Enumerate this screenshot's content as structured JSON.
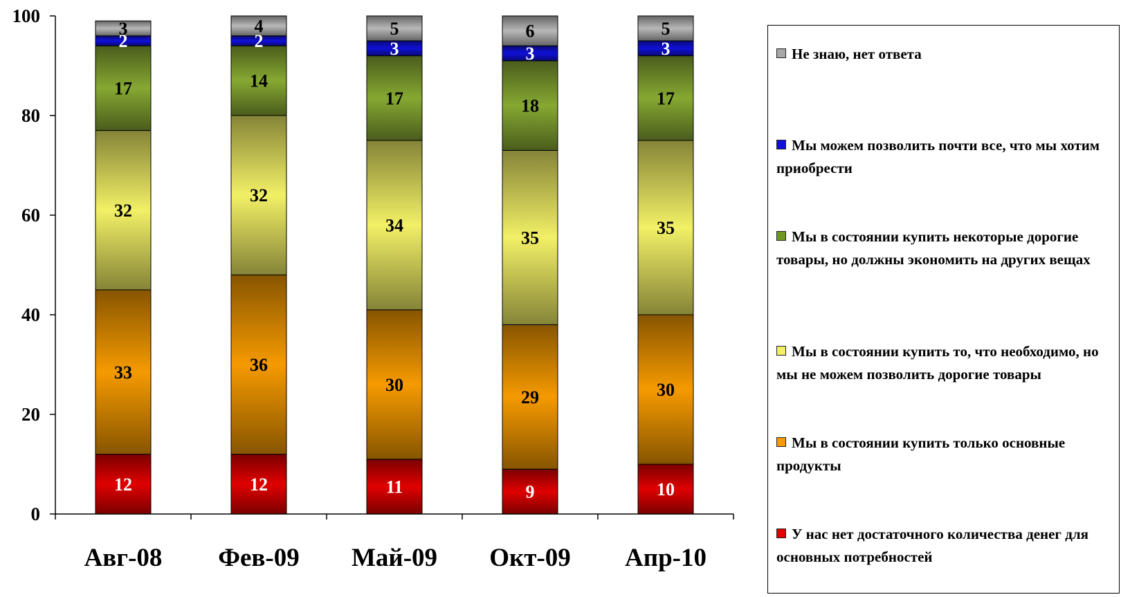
{
  "chart_data": {
    "type": "bar",
    "stacked": true,
    "title": "",
    "xlabel": "",
    "ylabel": "",
    "ylim": [
      0,
      100
    ],
    "yticks": [
      0,
      20,
      40,
      60,
      80,
      100
    ],
    "categories": [
      "Авг-08",
      "Фев-09",
      "Май-09",
      "Окт-09",
      "Апр-10"
    ],
    "series": [
      {
        "name": "У нас нет достаточного количества денег для основных потребностей",
        "values": [
          12,
          12,
          11,
          9,
          10
        ],
        "color": "#e00000",
        "label_color": "#ffffff"
      },
      {
        "name": "Мы в состоянии купить только основные продукты",
        "values": [
          33,
          36,
          30,
          29,
          30
        ],
        "color": "#f59a00",
        "label_color": "#000000"
      },
      {
        "name": "Мы в состоянии купить то, что необходимо, но мы не можем позволить дорогие товары",
        "values": [
          32,
          32,
          34,
          35,
          35
        ],
        "color": "#f2f066",
        "label_color": "#000000"
      },
      {
        "name": "Мы в состоянии купить некоторые дорогие товары, но должны экономить на других вещах",
        "values": [
          17,
          14,
          17,
          18,
          17
        ],
        "color": "#86a832",
        "label_color": "#000000"
      },
      {
        "name": "Мы можем позволить почти все, что мы хотим приобрести",
        "values": [
          2,
          2,
          3,
          3,
          3
        ],
        "color": "#1010d8",
        "label_color": "#ffffff"
      },
      {
        "name": "Не знаю, нет ответа",
        "values": [
          3,
          4,
          5,
          6,
          5
        ],
        "color": "#b8b8b8",
        "label_color": "#000000"
      }
    ],
    "legend": {
      "placement": "right",
      "items": [
        {
          "label": "Не знаю, нет ответа",
          "color": "#a8a8a8"
        },
        {
          "label": "Мы можем позволить почти все, что мы хотим приобрести",
          "color": "#1010d8"
        },
        {
          "label": "Мы в состоянии купить некоторые дорогие товары, но должны экономить на других вещах",
          "color": "#6e9a22"
        },
        {
          "label": "Мы в состоянии купить то, что необходимо, но мы не можем позволить дорогие товары",
          "color": "#f2f066"
        },
        {
          "label": "Мы в состоянии купить только основные продукты",
          "color": "#f59a00"
        },
        {
          "label": "У нас нет достаточного количества денег для основных потребностей",
          "color": "#e00000"
        }
      ]
    }
  }
}
